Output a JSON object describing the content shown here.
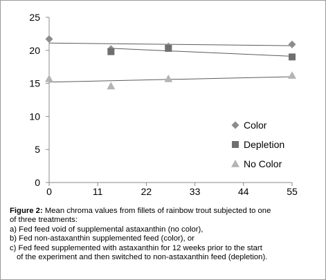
{
  "chart_data": {
    "type": "scatter",
    "x_ticks": [
      "0",
      "11",
      "22",
      "33",
      "44",
      "55"
    ],
    "y_ticks": [
      "0",
      "5",
      "10",
      "15",
      "20",
      "25"
    ],
    "xlim": [
      0,
      55
    ],
    "ylim": [
      0,
      25
    ],
    "grid": false,
    "legend_position": "right",
    "trendlines": true,
    "series": [
      {
        "name": "Color",
        "marker": "diamond",
        "color": "#8c8c8c",
        "x": [
          0,
          14,
          27,
          55
        ],
        "y": [
          21.7,
          20.2,
          20.6,
          20.9
        ],
        "trend": [
          [
            0,
            21.1
          ],
          [
            55,
            20.7
          ]
        ]
      },
      {
        "name": "Depletion",
        "marker": "square",
        "color": "#6f6f6f",
        "x": [
          14,
          27,
          55
        ],
        "y": [
          19.8,
          20.3,
          19.0
        ],
        "trend": [
          [
            14,
            20.3
          ],
          [
            55,
            19.1
          ]
        ]
      },
      {
        "name": "No Color",
        "marker": "triangle",
        "color": "#b4b4b4",
        "x": [
          0,
          14,
          27,
          55
        ],
        "y": [
          15.7,
          14.6,
          15.7,
          16.2
        ],
        "trend": [
          [
            0,
            15.2
          ],
          [
            55,
            16.0
          ]
        ]
      }
    ]
  },
  "caption": {
    "figure_label": "Figure 2:",
    "line1": " Mean chroma values from fillets of rainbow trout subjected to one",
    "line2": "of three treatments:",
    "item_a": "a) Fed feed void of supplemental astaxanthin (no color),",
    "item_b": "b) Fed non-astaxanthin supplemented feed (color), or",
    "item_c1": "c) Fed feed supplemented with astaxanthin for 12 weeks prior to the start",
    "item_c2": "of the experiment and then switched to non-astaxanthin feed (depletion)."
  }
}
